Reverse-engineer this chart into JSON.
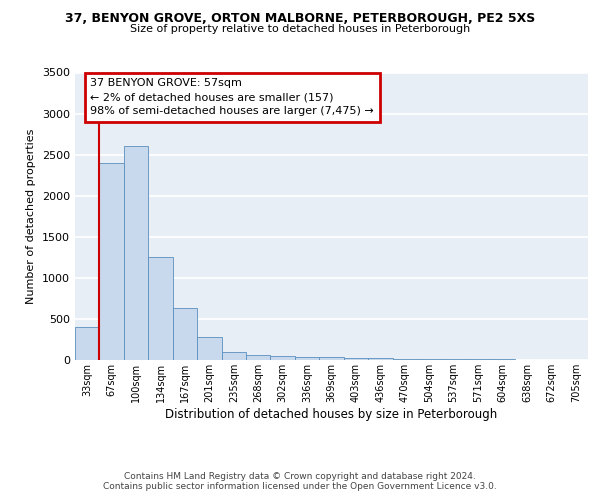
{
  "title_line1": "37, BENYON GROVE, ORTON MALBORNE, PETERBOROUGH, PE2 5XS",
  "title_line2": "Size of property relative to detached houses in Peterborough",
  "xlabel": "Distribution of detached houses by size in Peterborough",
  "ylabel": "Number of detached properties",
  "categories": [
    "33sqm",
    "67sqm",
    "100sqm",
    "134sqm",
    "167sqm",
    "201sqm",
    "235sqm",
    "268sqm",
    "302sqm",
    "336sqm",
    "369sqm",
    "403sqm",
    "436sqm",
    "470sqm",
    "504sqm",
    "537sqm",
    "571sqm",
    "604sqm",
    "638sqm",
    "672sqm",
    "705sqm"
  ],
  "values": [
    400,
    2400,
    2600,
    1250,
    630,
    280,
    100,
    60,
    50,
    40,
    35,
    30,
    20,
    15,
    12,
    10,
    8,
    7,
    5,
    4,
    3
  ],
  "bar_color": "#c8d9ed",
  "bar_edge_color": "#5a8fbe",
  "red_line_x": 0.5,
  "annotation_box_text": "37 BENYON GROVE: 57sqm\n← 2% of detached houses are smaller (157)\n98% of semi-detached houses are larger (7,475) →",
  "annotation_box_color": "#ffffff",
  "annotation_box_edge_color": "#cc0000",
  "ylim": [
    0,
    3500
  ],
  "yticks": [
    0,
    500,
    1000,
    1500,
    2000,
    2500,
    3000,
    3500
  ],
  "background_color": "#e8eef5",
  "grid_color": "#ffffff",
  "footnote_line1": "Contains HM Land Registry data © Crown copyright and database right 2024.",
  "footnote_line2": "Contains public sector information licensed under the Open Government Licence v3.0."
}
